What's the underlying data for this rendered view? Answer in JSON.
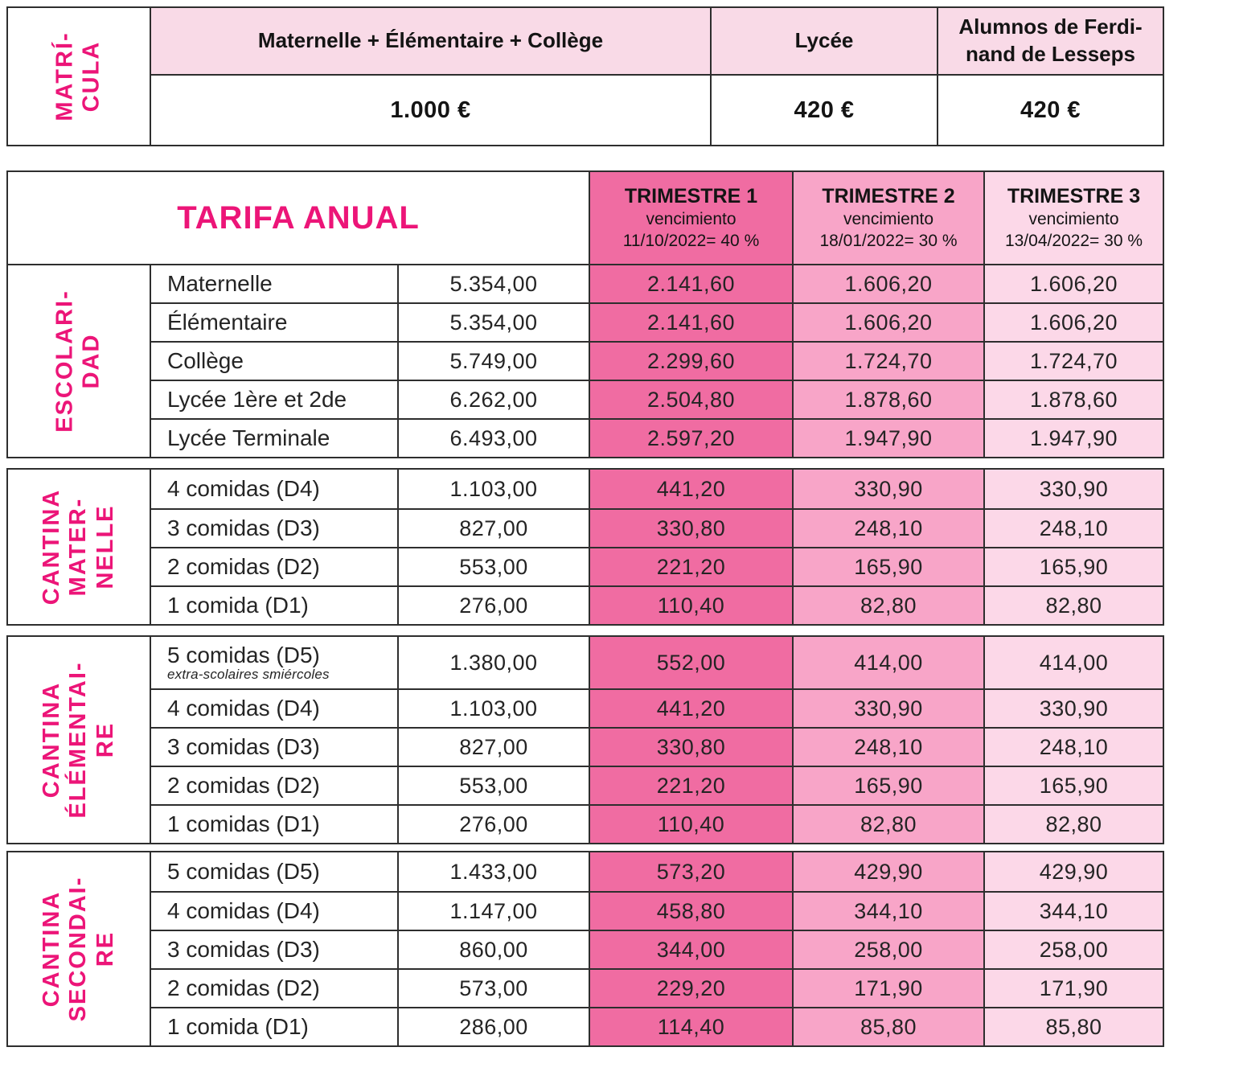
{
  "colors": {
    "magenta_label": "#ec1578",
    "trimester1_bg": "#f06ca2",
    "trimester2_bg": "#f8a5c8",
    "trimester3_bg": "#fcd8e8",
    "header_pink_bg": "#f9dae7",
    "border": "#2e2e2e"
  },
  "matricula": {
    "label": "MATRÍ-\nCULA",
    "columns": [
      "Maternelle + Élémentaire + Collège",
      "Lycée",
      "Alumnos de Ferdi-\nnand de Lesseps"
    ],
    "values": [
      "1.000 €",
      "420 €",
      "420 €"
    ]
  },
  "tarifa": {
    "title": "TARIFA ANUAL",
    "trimesters": [
      {
        "name": "TRIMESTRE 1",
        "venc": "vencimiento",
        "due": "11/10/2022= 40 %"
      },
      {
        "name": "TRIMESTRE 2",
        "venc": "vencimiento",
        "due": "18/01/2022= 30 %"
      },
      {
        "name": "TRIMESTRE 3",
        "venc": "vencimiento",
        "due": "13/04/2022= 30 %"
      }
    ]
  },
  "sections": [
    {
      "label": "ESCOLARI-\nDAD",
      "rows": [
        {
          "name": "Maternelle",
          "annual": "5.354,00",
          "t1": "2.141,60",
          "t2": "1.606,20",
          "t3": "1.606,20"
        },
        {
          "name": "Élémentaire",
          "annual": "5.354,00",
          "t1": "2.141,60",
          "t2": "1.606,20",
          "t3": "1.606,20"
        },
        {
          "name": "Collège",
          "annual": "5.749,00",
          "t1": "2.299,60",
          "t2": "1.724,70",
          "t3": "1.724,70"
        },
        {
          "name": "Lycée 1ère et 2de",
          "annual": "6.262,00",
          "t1": "2.504,80",
          "t2": "1.878,60",
          "t3": "1.878,60"
        },
        {
          "name": "Lycée Terminale",
          "annual": "6.493,00",
          "t1": "2.597,20",
          "t2": "1.947,90",
          "t3": "1.947,90"
        }
      ]
    },
    {
      "label": "CANTINA\nMATER-\nNELLE",
      "rows": [
        {
          "name": "4 comidas (D4)",
          "annual": "1.103,00",
          "t1": "441,20",
          "t2": "330,90",
          "t3": "330,90"
        },
        {
          "name": "3 comidas (D3)",
          "annual": "827,00",
          "t1": "330,80",
          "t2": "248,10",
          "t3": "248,10"
        },
        {
          "name": "2 comidas (D2)",
          "annual": "553,00",
          "t1": "221,20",
          "t2": "165,90",
          "t3": "165,90"
        },
        {
          "name": "1 comida (D1)",
          "annual": "276,00",
          "t1": "110,40",
          "t2": "82,80",
          "t3": "82,80"
        }
      ]
    },
    {
      "label": "CANTINA\nÉLÉMENTAI-\nRE",
      "rows": [
        {
          "name": "5 comidas (D5)",
          "note": "extra-scolaires smiércoles",
          "annual": "1.380,00",
          "t1": "552,00",
          "t2": "414,00",
          "t3": "414,00"
        },
        {
          "name": "4 comidas (D4)",
          "annual": "1.103,00",
          "t1": "441,20",
          "t2": "330,90",
          "t3": "330,90"
        },
        {
          "name": "3 comidas (D3)",
          "annual": "827,00",
          "t1": "330,80",
          "t2": "248,10",
          "t3": "248,10"
        },
        {
          "name": "2 comidas (D2)",
          "annual": "553,00",
          "t1": "221,20",
          "t2": "165,90",
          "t3": "165,90"
        },
        {
          "name": "1 comidas (D1)",
          "annual": "276,00",
          "t1": "110,40",
          "t2": "82,80",
          "t3": "82,80"
        }
      ]
    },
    {
      "label": "CANTINA\nSECONDAI-\nRE",
      "rows": [
        {
          "name": "5 comidas (D5)",
          "annual": "1.433,00",
          "t1": "573,20",
          "t2": "429,90",
          "t3": "429,90"
        },
        {
          "name": "4 comidas (D4)",
          "annual": "1.147,00",
          "t1": "458,80",
          "t2": "344,10",
          "t3": "344,10"
        },
        {
          "name": "3 comidas (D3)",
          "annual": "860,00",
          "t1": "344,00",
          "t2": "258,00",
          "t3": "258,00"
        },
        {
          "name": "2 comidas (D2)",
          "annual": "573,00",
          "t1": "229,20",
          "t2": "171,90",
          "t3": "171,90"
        },
        {
          "name": "1 comida (D1)",
          "annual": "286,00",
          "t1": "114,40",
          "t2": "85,80",
          "t3": "85,80"
        }
      ]
    }
  ]
}
